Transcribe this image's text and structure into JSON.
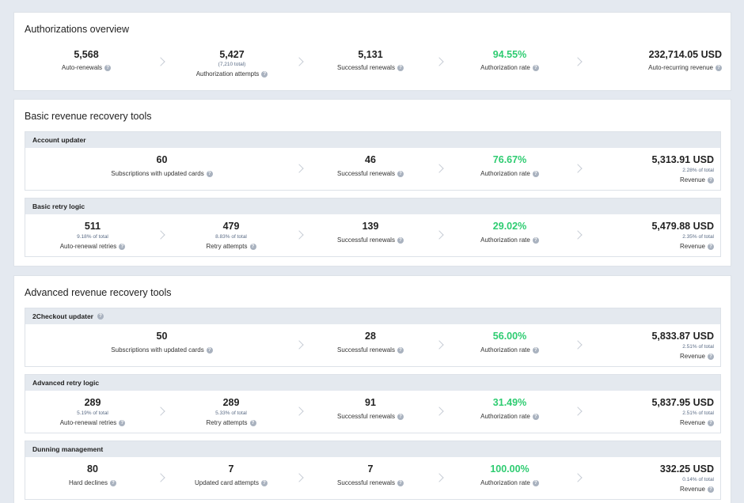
{
  "auth": {
    "title": "Authorizations overview",
    "metrics": [
      {
        "value": "5,568",
        "label": "Auto-renewals"
      },
      {
        "value": "5,427",
        "note": "(7,210 total)",
        "label": "Authorization attempts"
      },
      {
        "value": "5,131",
        "label": "Successful renewals"
      },
      {
        "value": "94.55%",
        "label": "Authorization rate"
      },
      {
        "value": "232,714.05 USD",
        "label": "Auto-recurring revenue"
      }
    ]
  },
  "basic": {
    "title": "Basic revenue recovery tools",
    "account_updater": {
      "title": "Account updater",
      "m1": {
        "value": "60",
        "label": "Subscriptions with updated cards"
      },
      "m2": {
        "value": "46",
        "label": "Successful renewals"
      },
      "m3": {
        "value": "76.67%",
        "label": "Authorization rate"
      },
      "m4": {
        "value": "5,313.91 USD",
        "note": "2.28% of total",
        "label": "Revenue"
      }
    },
    "retry_logic": {
      "title": "Basic retry logic",
      "m1": {
        "value": "511",
        "note": "9.18% of total",
        "label": "Auto-renewal retries"
      },
      "m2": {
        "value": "479",
        "note": "8.83% of total",
        "label": "Retry attempts"
      },
      "m3": {
        "value": "139",
        "label": "Successful renewals"
      },
      "m4": {
        "value": "29.02%",
        "label": "Authorization rate"
      },
      "m5": {
        "value": "5,479.88 USD",
        "note": "2.35% of total",
        "label": "Revenue"
      }
    }
  },
  "advanced": {
    "title": "Advanced revenue recovery tools",
    "updater": {
      "title": "2Checkout updater",
      "m1": {
        "value": "50",
        "label": "Subscriptions with updated cards"
      },
      "m2": {
        "value": "28",
        "label": "Successful renewals"
      },
      "m3": {
        "value": "56.00%",
        "label": "Authorization rate"
      },
      "m4": {
        "value": "5,833.87 USD",
        "note": "2.51% of total",
        "label": "Revenue"
      }
    },
    "retry_logic": {
      "title": "Advanced retry logic",
      "m1": {
        "value": "289",
        "note": "5.19% of total",
        "label": "Auto-renewal retries"
      },
      "m2": {
        "value": "289",
        "note": "5.33% of total",
        "label": "Retry attempts"
      },
      "m3": {
        "value": "91",
        "label": "Successful renewals"
      },
      "m4": {
        "value": "31.49%",
        "label": "Authorization rate"
      },
      "m5": {
        "value": "5,837.95 USD",
        "note": "2.51% of total",
        "label": "Revenue"
      }
    },
    "dunning": {
      "title": "Dunning management",
      "m1": {
        "value": "80",
        "label": "Hard declines"
      },
      "m2": {
        "value": "7",
        "label": "Updated card attempts"
      },
      "m3": {
        "value": "7",
        "label": "Successful renewals"
      },
      "m4": {
        "value": "100.00%",
        "label": "Authorization rate"
      },
      "m5": {
        "value": "332.25 USD",
        "note": "0.14% of total",
        "label": "Revenue"
      }
    }
  },
  "icons": {
    "help": "?",
    "help_name": "question-circle-icon",
    "separator": "chevron-right-icon"
  },
  "colors": {
    "accent_green": "#2ecc71",
    "background": "#e4e9f0",
    "subheader": "#e4e9ef"
  }
}
